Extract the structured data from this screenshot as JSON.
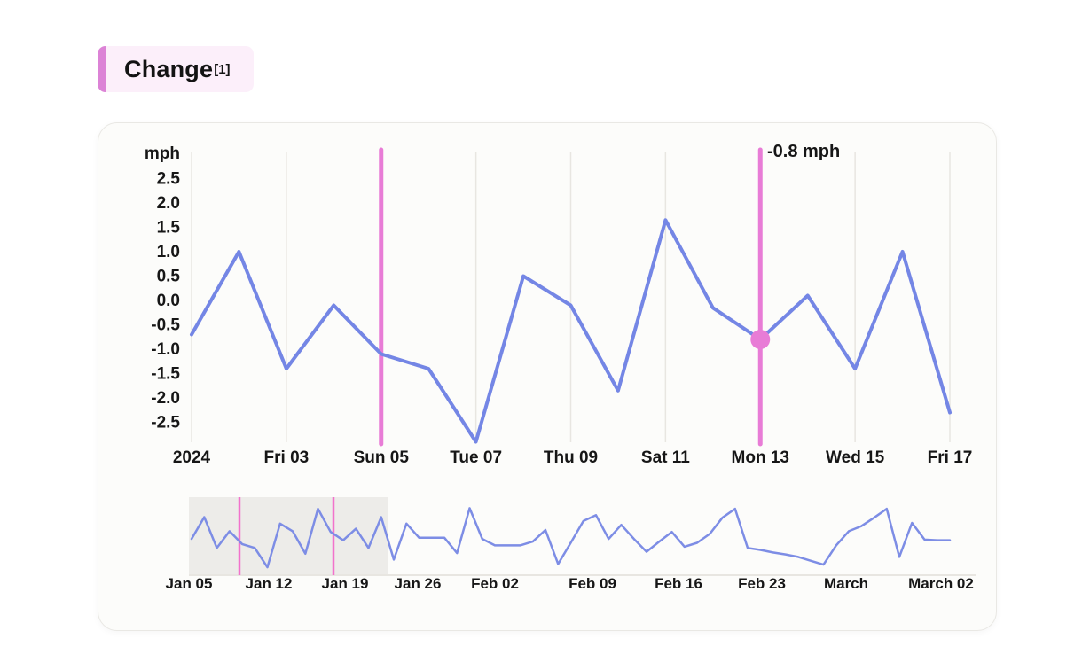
{
  "header": {
    "title": "Change",
    "footnote_marker": "[1]"
  },
  "chart_data": {
    "type": "line",
    "unit": "mph",
    "main_chart": {
      "y_unit_label": "mph",
      "y_ticks": [
        "2.5",
        "2.0",
        "1.5",
        "1.0",
        "0.5",
        "0.0",
        "-0.5",
        "-1.0",
        "-1.5",
        "-2.0",
        "-2.5"
      ],
      "y_tick_values": [
        2.5,
        2.0,
        1.5,
        1.0,
        0.5,
        0.0,
        -0.5,
        -1.0,
        -1.5,
        -2.0,
        -2.5
      ],
      "ylim": [
        -3.0,
        2.9
      ],
      "x_tick_labels": [
        "2024",
        "Fri 03",
        "Sun 05",
        "Tue 07",
        "Thu 09",
        "Sat 11",
        "Mon 13",
        "Wed 15",
        "Fri 17"
      ],
      "highlighted_tick_labels": [
        "Sun 05",
        "Mon 13"
      ],
      "highlighted_tick_indices": [
        2,
        6
      ],
      "values_mph": [
        -0.7,
        1.0,
        -1.4,
        -0.1,
        -1.1,
        -1.4,
        -2.9,
        0.5,
        -0.1,
        -1.85,
        1.65,
        -0.15,
        -0.8,
        0.1,
        -1.4,
        1.0,
        -2.3
      ],
      "cursor": {
        "tooltip_label": "-0.8 mph",
        "value": -0.8,
        "point_index": 12,
        "at_tick_label": "Mon 13"
      }
    },
    "overview_chart": {
      "x_tick_labels": [
        "Jan 05",
        "Jan 12",
        "Jan 19",
        "Jan 26",
        "Feb 02",
        "Feb 09",
        "Feb 16",
        "Feb 23",
        "March",
        "March 02"
      ],
      "values_mph": [
        -0.7,
        1.0,
        -1.4,
        -0.1,
        -1.1,
        -1.4,
        -2.9,
        0.5,
        -0.1,
        -1.85,
        1.65,
        -0.15,
        -0.8,
        0.1,
        -1.4,
        1.0,
        -2.3,
        0.5,
        -0.6,
        -0.6,
        -0.6,
        -1.8,
        1.7,
        -0.7,
        -1.2,
        -1.2,
        -1.2,
        -0.9,
        0.0,
        -2.65,
        -1.0,
        0.7,
        1.15,
        -0.7,
        0.4,
        -0.7,
        -1.7,
        -0.9,
        -0.15,
        -1.3,
        -1.0,
        -0.3,
        0.95,
        1.65,
        -1.4,
        -1.55,
        -1.75,
        -1.9,
        -2.1,
        -2.4,
        -2.7,
        -1.2,
        -0.1,
        0.3,
        0.95,
        1.65,
        -2.1,
        0.55,
        -0.75,
        -0.8,
        -0.8
      ],
      "selection": {
        "covers_main_range": true,
        "marker_labels": [
          "Sun 05",
          "Mon 13"
        ]
      }
    }
  },
  "colors": {
    "line_blue": "#7486E5",
    "overview_line_blue": "#7D8DE5",
    "highlight_pink": "#E87CD6",
    "overview_marker_pink": "#F272CC",
    "cursor_dot_pink": "#E87CD6",
    "grid_gray": "#E8E6E1",
    "selection_gray": "#EDECE9",
    "text_dark": "#161616",
    "title_chip_bg": "#FCEFFA",
    "title_accent": "#DC83D6",
    "card_bg": "#FCFCFA",
    "card_border": "#E9E8E4"
  }
}
